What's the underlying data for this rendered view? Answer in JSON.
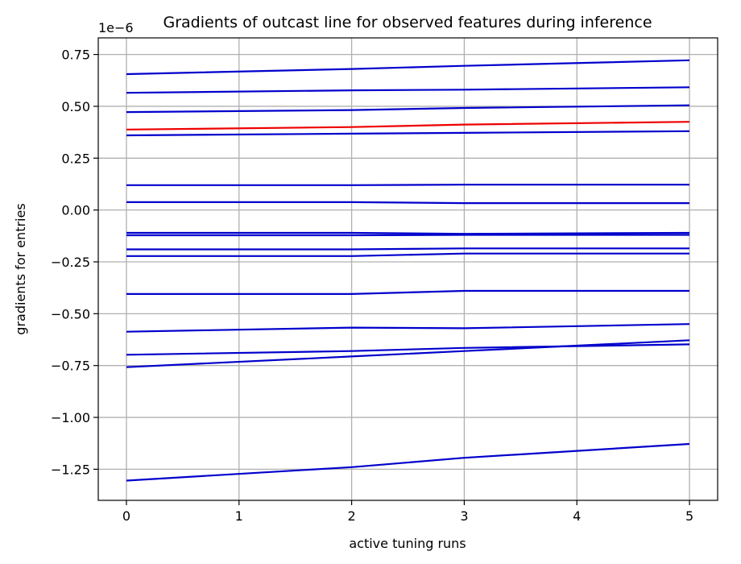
{
  "chart_data": {
    "type": "line",
    "title": "Gradients of outcast line for observed features during inference",
    "xlabel": "active tuning runs",
    "ylabel": "gradients for entries",
    "offset_label": "1e−6",
    "x": [
      0,
      2,
      3,
      5
    ],
    "xlim": [
      -0.25,
      5.25
    ],
    "ylim": [
      -1.4,
      0.83
    ],
    "xticks": [
      0,
      1,
      2,
      3,
      4,
      5
    ],
    "xtick_labels": [
      "0",
      "1",
      "2",
      "3",
      "4",
      "5"
    ],
    "yticks": [
      -1.25,
      -1.0,
      -0.75,
      -0.5,
      -0.25,
      0.0,
      0.25,
      0.5,
      0.75
    ],
    "ytick_labels": [
      "−1.25",
      "−1.00",
      "−0.75",
      "−0.50",
      "−0.25",
      "0.00",
      "0.25",
      "0.50",
      "0.75"
    ],
    "grid": true,
    "colors": {
      "normal": "#0000cc",
      "outcast": "#ee0000"
    },
    "series": [
      {
        "values": [
          0.655,
          0.68,
          0.695,
          0.722
        ],
        "color": "#0000cc"
      },
      {
        "values": [
          0.565,
          0.577,
          0.58,
          0.592
        ],
        "color": "#0000cc"
      },
      {
        "values": [
          0.472,
          0.482,
          0.492,
          0.505
        ],
        "color": "#0000cc"
      },
      {
        "values": [
          0.388,
          0.4,
          0.412,
          0.425
        ],
        "color": "#ee0000"
      },
      {
        "values": [
          0.36,
          0.368,
          0.372,
          0.38
        ],
        "color": "#0000cc"
      },
      {
        "values": [
          0.12,
          0.12,
          0.122,
          0.122
        ],
        "color": "#0000cc"
      },
      {
        "values": [
          0.038,
          0.038,
          0.033,
          0.033
        ],
        "color": "#0000cc"
      },
      {
        "values": [
          -0.11,
          -0.11,
          -0.115,
          -0.11
        ],
        "color": "#0000cc"
      },
      {
        "values": [
          -0.122,
          -0.122,
          -0.12,
          -0.12
        ],
        "color": "#0000cc"
      },
      {
        "values": [
          -0.19,
          -0.19,
          -0.185,
          -0.185
        ],
        "color": "#0000cc"
      },
      {
        "values": [
          -0.222,
          -0.222,
          -0.21,
          -0.21
        ],
        "color": "#0000cc"
      },
      {
        "values": [
          -0.405,
          -0.405,
          -0.39,
          -0.39
        ],
        "color": "#0000cc"
      },
      {
        "values": [
          -0.587,
          -0.567,
          -0.57,
          -0.55
        ],
        "color": "#0000cc"
      },
      {
        "values": [
          -0.698,
          -0.68,
          -0.665,
          -0.648
        ],
        "color": "#0000cc"
      },
      {
        "values": [
          -0.758,
          -0.706,
          -0.68,
          -0.628
        ],
        "color": "#0000cc"
      },
      {
        "values": [
          -1.305,
          -1.24,
          -1.195,
          -1.128
        ],
        "color": "#0000cc"
      }
    ]
  }
}
